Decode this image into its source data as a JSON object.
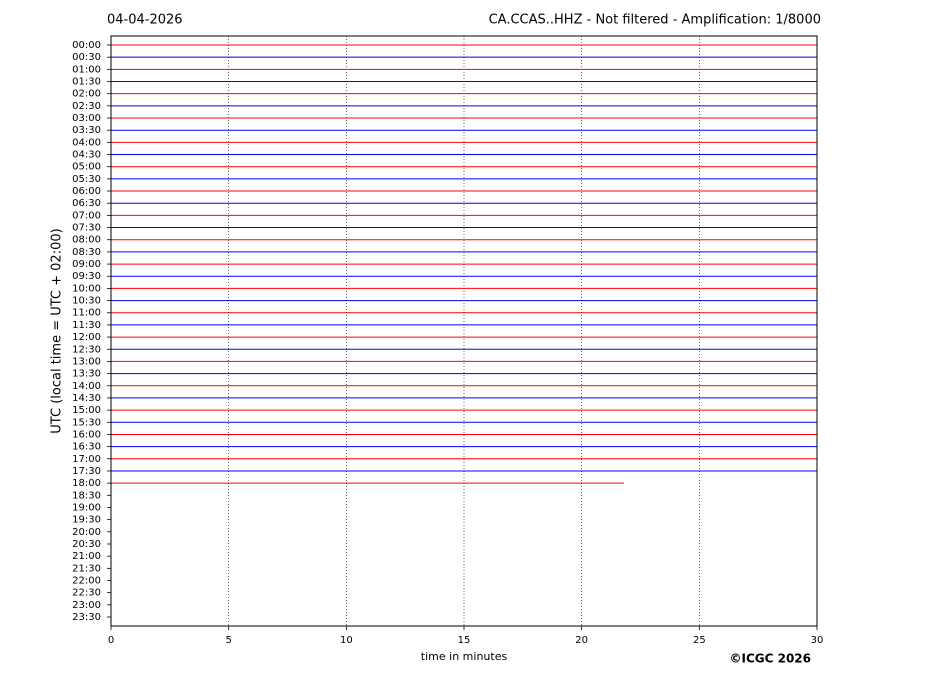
{
  "chart_data": {
    "type": "helicorder",
    "title": "04-04-2026",
    "subtitle": "CA.CCAS..HHZ - Not filtered - Amplification: 1/8000",
    "x_label": "time in minutes",
    "y_label": "UTC (local time = UTC + 02:00)",
    "credit": "©ICGC 2026",
    "categories": [
      "00:00",
      "00:30",
      "01:00",
      "01:30",
      "02:00",
      "02:30",
      "03:00",
      "03:30",
      "04:00",
      "04:30",
      "05:00",
      "05:30",
      "06:00",
      "06:30",
      "07:00",
      "07:30",
      "08:00",
      "08:30",
      "09:00",
      "09:30",
      "10:00",
      "10:30",
      "11:00",
      "11:30",
      "12:00",
      "12:30",
      "13:00",
      "13:30",
      "14:00",
      "14:30",
      "15:00",
      "15:30",
      "16:00",
      "16:30",
      "17:00",
      "17:30",
      "18:00",
      "18:30",
      "19:00",
      "19:30",
      "20:00",
      "20:30",
      "21:00",
      "21:30",
      "22:00",
      "22:30",
      "23:00",
      "23:30"
    ],
    "values": [
      30,
      30,
      30,
      30,
      30,
      30,
      30,
      30,
      30,
      30,
      30,
      30,
      30,
      30,
      30,
      30,
      30,
      30,
      30,
      30,
      30,
      30,
      30,
      30,
      30,
      30,
      30,
      30,
      30,
      30,
      30,
      30,
      30,
      30,
      30,
      30,
      21.8,
      null,
      null,
      null,
      null,
      null,
      null,
      null,
      null,
      null,
      null,
      null
    ],
    "colors": [
      "#ff0000",
      "#0000ff"
    ],
    "xlim": [
      0,
      30
    ],
    "xticks": [
      0,
      5,
      10,
      15,
      20,
      25,
      30
    ],
    "grid": true
  }
}
